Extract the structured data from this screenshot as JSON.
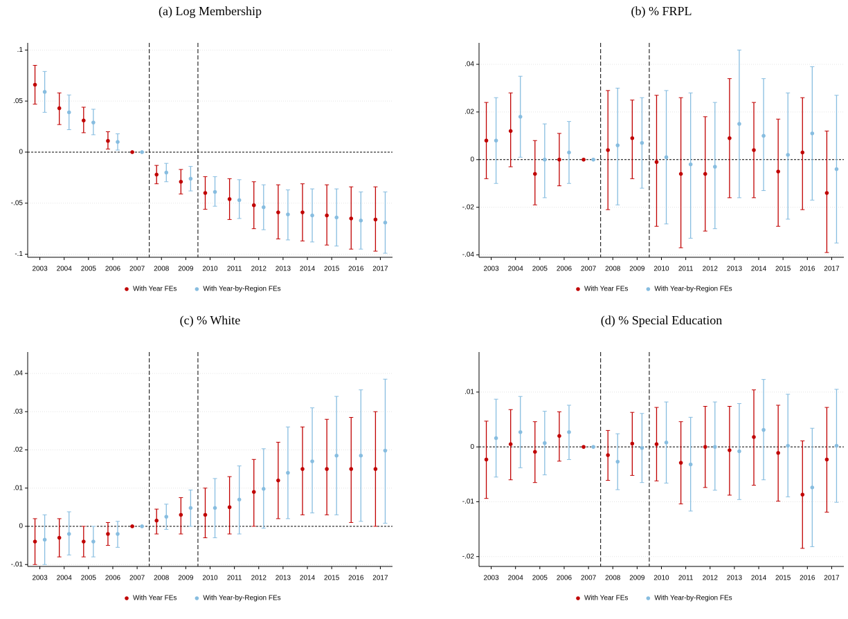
{
  "chart_data": [
    {
      "type": "errorbar",
      "title": "(a) Log Membership",
      "x": [
        2003,
        2004,
        2005,
        2006,
        2007,
        2008,
        2009,
        2010,
        2011,
        2012,
        2013,
        2014,
        2015,
        2016,
        2017
      ],
      "xlim": [
        2002.5,
        2017.5
      ],
      "xticks": [
        2003,
        2004,
        2005,
        2006,
        2007,
        2008,
        2009,
        2010,
        2011,
        2012,
        2013,
        2014,
        2015,
        2016,
        2017
      ],
      "ylim": [
        -0.103,
        0.107
      ],
      "yticks": [
        {
          "value": -0.1,
          "label": "-.1"
        },
        {
          "value": -0.05,
          "label": "-.05"
        },
        0,
        {
          "value": 0.05,
          "label": ".05"
        },
        {
          "value": 0.1,
          "label": ".1"
        }
      ],
      "grid": true,
      "hline": 0,
      "vlines": [
        2007.5,
        2009.5
      ],
      "series": [
        {
          "name": "With Year FEs",
          "color": "#c00000",
          "values": [
            0.066,
            0.043,
            0.031,
            0.011,
            0,
            -0.022,
            -0.029,
            -0.04,
            -0.046,
            -0.052,
            -0.059,
            -0.059,
            -0.062,
            -0.065,
            -0.066
          ],
          "lower": [
            0.047,
            0.027,
            0.019,
            0.003,
            0,
            -0.031,
            -0.041,
            -0.056,
            -0.066,
            -0.075,
            -0.085,
            -0.087,
            -0.091,
            -0.095,
            -0.097
          ],
          "upper": [
            0.085,
            0.058,
            0.044,
            0.02,
            0,
            -0.013,
            -0.017,
            -0.024,
            -0.026,
            -0.029,
            -0.032,
            -0.031,
            -0.032,
            -0.034,
            -0.034
          ]
        },
        {
          "name": "With Year-by-Region FEs",
          "color": "#87bde0",
          "values": [
            0.059,
            0.039,
            0.029,
            0.01,
            0,
            -0.02,
            -0.026,
            -0.039,
            -0.047,
            -0.054,
            -0.061,
            -0.062,
            -0.064,
            -0.067,
            -0.069
          ],
          "lower": [
            0.039,
            0.022,
            0.017,
            0.002,
            0,
            -0.029,
            -0.038,
            -0.053,
            -0.065,
            -0.076,
            -0.086,
            -0.088,
            -0.092,
            -0.095,
            -0.099
          ],
          "upper": [
            0.079,
            0.056,
            0.042,
            0.018,
            0,
            -0.011,
            -0.014,
            -0.024,
            -0.027,
            -0.032,
            -0.037,
            -0.036,
            -0.036,
            -0.039,
            -0.039
          ]
        }
      ]
    },
    {
      "type": "errorbar",
      "title": "(b) % FRPL",
      "x": [
        2003,
        2004,
        2005,
        2006,
        2007,
        2008,
        2009,
        2010,
        2011,
        2012,
        2013,
        2014,
        2015,
        2016,
        2017
      ],
      "xlim": [
        2002.5,
        2017.5
      ],
      "xticks": [
        2003,
        2004,
        2005,
        2006,
        2007,
        2008,
        2009,
        2010,
        2011,
        2012,
        2013,
        2014,
        2015,
        2016,
        2017
      ],
      "ylim": [
        -0.041,
        0.049
      ],
      "yticks": [
        {
          "value": -0.04,
          "label": "-.04"
        },
        {
          "value": -0.02,
          "label": "-.02"
        },
        0,
        {
          "value": 0.02,
          "label": ".02"
        },
        {
          "value": 0.04,
          "label": ".04"
        }
      ],
      "grid": true,
      "hline": 0,
      "vlines": [
        2007.5,
        2009.5
      ],
      "series": [
        {
          "name": "With Year FEs",
          "color": "#c00000",
          "values": [
            0.008,
            0.012,
            -0.006,
            0,
            0,
            0.004,
            0.009,
            -0.001,
            -0.006,
            -0.006,
            0.009,
            0.004,
            -0.005,
            0.003,
            -0.014
          ],
          "lower": [
            -0.008,
            -0.003,
            -0.019,
            -0.011,
            0,
            -0.021,
            -0.008,
            -0.028,
            -0.037,
            -0.03,
            -0.016,
            -0.016,
            -0.028,
            -0.021,
            -0.039
          ],
          "upper": [
            0.024,
            0.028,
            0.008,
            0.011,
            0,
            0.029,
            0.025,
            0.027,
            0.026,
            0.018,
            0.034,
            0.024,
            0.017,
            0.026,
            0.012
          ]
        },
        {
          "name": "With Year-by-Region FEs",
          "color": "#87bde0",
          "values": [
            0.008,
            0.018,
            0,
            0.003,
            0,
            0.006,
            0.007,
            0.001,
            -0.002,
            -0.003,
            0.015,
            0.01,
            0.002,
            0.011,
            -0.004
          ],
          "lower": [
            -0.01,
            0.001,
            -0.016,
            -0.01,
            0,
            -0.019,
            -0.012,
            -0.027,
            -0.033,
            -0.029,
            -0.016,
            -0.013,
            -0.025,
            -0.017,
            -0.035
          ],
          "upper": [
            0.026,
            0.035,
            0.015,
            0.016,
            0,
            0.03,
            0.026,
            0.029,
            0.028,
            0.024,
            0.046,
            0.034,
            0.028,
            0.039,
            0.027
          ]
        }
      ]
    },
    {
      "type": "errorbar",
      "title": "(c) % White",
      "x": [
        2003,
        2004,
        2005,
        2006,
        2007,
        2008,
        2009,
        2010,
        2011,
        2012,
        2013,
        2014,
        2015,
        2016,
        2017
      ],
      "xlim": [
        2002.5,
        2017.5
      ],
      "xticks": [
        2003,
        2004,
        2005,
        2006,
        2007,
        2008,
        2009,
        2010,
        2011,
        2012,
        2013,
        2014,
        2015,
        2016,
        2017
      ],
      "ylim": [
        -0.0105,
        0.0456
      ],
      "yticks": [
        {
          "value": -0.01,
          "label": "-.01"
        },
        0,
        {
          "value": 0.01,
          "label": ".01"
        },
        {
          "value": 0.02,
          "label": ".02"
        },
        {
          "value": 0.03,
          "label": ".03"
        },
        {
          "value": 0.04,
          "label": ".04"
        }
      ],
      "grid": true,
      "hline": 0,
      "vlines": [
        2007.5,
        2009.5
      ],
      "series": [
        {
          "name": "With Year FEs",
          "color": "#c00000",
          "values": [
            -0.004,
            -0.003,
            -0.004,
            -0.002,
            0,
            0.0015,
            0.003,
            0.003,
            0.005,
            0.009,
            0.012,
            0.015,
            0.015,
            0.015,
            0.015
          ],
          "lower": [
            -0.01,
            -0.008,
            -0.008,
            -0.005,
            0,
            -0.002,
            -0.002,
            -0.003,
            -0.002,
            0,
            0.002,
            0.003,
            0.003,
            0.001,
            0
          ],
          "upper": [
            0.002,
            0.002,
            0,
            0.001,
            0,
            0.0045,
            0.0075,
            0.01,
            0.013,
            0.0175,
            0.022,
            0.026,
            0.028,
            0.0285,
            0.03
          ]
        },
        {
          "name": "With Year-by-Region FEs",
          "color": "#87bde0",
          "values": [
            -0.0035,
            -0.002,
            -0.004,
            -0.002,
            0,
            0.0025,
            0.0048,
            0.0048,
            0.007,
            0.0098,
            0.014,
            0.017,
            0.0185,
            0.0185,
            0.0198
          ],
          "lower": [
            -0.01,
            -0.0075,
            -0.008,
            -0.0055,
            0,
            -0.0008,
            0,
            -0.003,
            -0.002,
            -0.0005,
            0.002,
            0.0035,
            0.003,
            0.0013,
            0.0008
          ],
          "upper": [
            0.003,
            0.0038,
            0,
            0.0013,
            0,
            0.0058,
            0.0095,
            0.0125,
            0.0158,
            0.0203,
            0.026,
            0.031,
            0.034,
            0.0357,
            0.0385
          ]
        }
      ]
    },
    {
      "type": "errorbar",
      "title": "(d) % Special Education",
      "x": [
        2003,
        2004,
        2005,
        2006,
        2007,
        2008,
        2009,
        2010,
        2011,
        2012,
        2013,
        2014,
        2015,
        2016,
        2017
      ],
      "xlim": [
        2002.5,
        2017.5
      ],
      "xticks": [
        2003,
        2004,
        2005,
        2006,
        2007,
        2008,
        2009,
        2010,
        2011,
        2012,
        2013,
        2014,
        2015,
        2016,
        2017
      ],
      "ylim": [
        -0.0218,
        0.0173
      ],
      "yticks": [
        {
          "value": -0.02,
          "label": "-.02"
        },
        {
          "value": -0.01,
          "label": "-.01"
        },
        0,
        {
          "value": 0.01,
          "label": ".01"
        }
      ],
      "grid": true,
      "hline": 0,
      "vlines": [
        2007.5,
        2009.5
      ],
      "series": [
        {
          "name": "With Year FEs",
          "color": "#c00000",
          "values": [
            -0.0023,
            0.0005,
            -0.0009,
            0.002,
            0,
            -0.0015,
            0.0006,
            0.0005,
            -0.0029,
            0,
            -0.0006,
            0.0018,
            -0.0011,
            -0.0087,
            -0.0023
          ],
          "lower": [
            -0.0094,
            -0.006,
            -0.0065,
            -0.0026,
            0,
            -0.0061,
            -0.0052,
            -0.0062,
            -0.0104,
            -0.0074,
            -0.0088,
            -0.007,
            -0.0099,
            -0.0185,
            -0.0119
          ],
          "upper": [
            0.0047,
            0.0068,
            0.0046,
            0.0064,
            0,
            0.003,
            0.0063,
            0.0072,
            0.0046,
            0.0074,
            0.0074,
            0.0104,
            0.0076,
            0.0011,
            0.0072
          ]
        },
        {
          "name": "With Year-by-Region FEs",
          "color": "#87bde0",
          "values": [
            0.0016,
            0.0027,
            0.0007,
            0.0027,
            0,
            -0.0027,
            -0.0002,
            0.0008,
            -0.0032,
            0,
            -0.0008,
            0.0031,
            0.0002,
            -0.0074,
            0.0002
          ],
          "lower": [
            -0.0055,
            -0.0038,
            -0.0051,
            -0.0023,
            0,
            -0.0078,
            -0.0065,
            -0.0066,
            -0.0117,
            -0.0079,
            -0.0096,
            -0.006,
            -0.0091,
            -0.0182,
            -0.0101
          ],
          "upper": [
            0.0087,
            0.0092,
            0.0065,
            0.0076,
            0,
            0.0024,
            0.0061,
            0.0082,
            0.0054,
            0.0082,
            0.0079,
            0.0123,
            0.0096,
            0.0034,
            0.0105
          ]
        }
      ]
    }
  ]
}
